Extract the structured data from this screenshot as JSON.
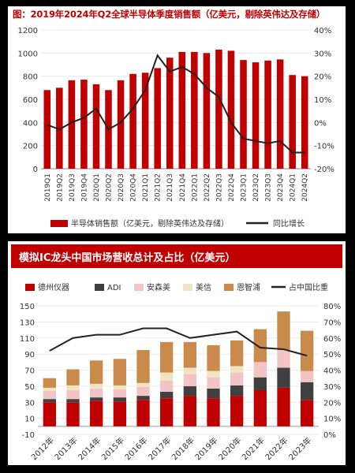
{
  "colors": {
    "bar_red": "#c00000",
    "line_black": "#222222",
    "adi": "#404040",
    "ams": "#f2c4c4",
    "maxim": "#f1e3c0",
    "onsemi": "#c98a4b"
  },
  "chart_data": [
    {
      "type": "bar",
      "title": "图：2019年2024年Q2全球半导体季度销售额（亿美元，剔除英伟达及存储）",
      "categories": [
        "2019Q1",
        "2019Q2",
        "2019Q3",
        "2019Q4",
        "2020Q1",
        "2020Q2",
        "2020Q3",
        "2020Q4",
        "2021Q1",
        "2021Q2",
        "2021Q3",
        "2021Q4",
        "2022Q1",
        "2022Q2",
        "2022Q3",
        "2022Q4",
        "2023Q1",
        "2023Q2",
        "2023Q3",
        "2023Q4",
        "2024Q1",
        "2024Q2"
      ],
      "series": [
        {
          "name": "半导体销售额（亿美元，剔除英伟达及存储）",
          "type": "bar",
          "axis": "left",
          "values": [
            680,
            700,
            765,
            770,
            730,
            680,
            765,
            820,
            830,
            870,
            960,
            1010,
            1010,
            1000,
            1030,
            1020,
            940,
            920,
            935,
            945,
            810,
            800
          ]
        },
        {
          "name": "同比增长",
          "type": "line",
          "axis": "right",
          "unit": "%",
          "values": [
            -1,
            -3,
            0,
            2,
            6,
            -3,
            0,
            6,
            14,
            29,
            22,
            24,
            21,
            15,
            11,
            0,
            -7,
            -8,
            -9,
            -8,
            -13,
            -13
          ]
        }
      ],
      "yticks_left": [
        "0",
        "200",
        "400",
        "600",
        "800",
        "1000",
        "1200"
      ],
      "yticks_right": [
        "-20%",
        "-10%",
        "0%",
        "10%",
        "20%",
        "30%",
        "40%"
      ],
      "ylim_left": [
        0,
        1200
      ],
      "ylim_right": [
        -20,
        40
      ],
      "legend_position": "bottom"
    },
    {
      "type": "bar",
      "title": "模拟IC龙头中国市场营收总计及占比（亿美元）",
      "categories": [
        "2012年",
        "2013年",
        "2014年",
        "2015年",
        "2016年",
        "2017年",
        "2018年",
        "2019年",
        "2020年",
        "2021年",
        "2022年",
        "2023年"
      ],
      "series": [
        {
          "name": "德州仪器",
          "type": "stacked-bar",
          "axis": "left",
          "values": [
            30,
            30,
            32,
            31,
            33,
            35,
            38,
            35,
            38,
            45,
            48,
            33
          ]
        },
        {
          "name": "ADI",
          "type": "stacked-bar",
          "axis": "left",
          "values": [
            4,
            4,
            4,
            5,
            5,
            8,
            12,
            12,
            13,
            16,
            25,
            22
          ]
        },
        {
          "name": "安森美",
          "type": "stacked-bar",
          "axis": "left",
          "values": [
            10,
            11,
            11,
            10,
            11,
            14,
            15,
            14,
            16,
            19,
            22,
            14
          ]
        },
        {
          "name": "美信",
          "type": "stacked-bar",
          "axis": "left",
          "values": [
            4,
            6,
            6,
            5,
            5,
            10,
            8,
            8,
            8,
            0,
            0,
            0
          ]
        },
        {
          "name": "恩智浦",
          "type": "stacked-bar",
          "axis": "left",
          "values": [
            12,
            20,
            29,
            33,
            41,
            38,
            32,
            32,
            32,
            41,
            48,
            50
          ]
        },
        {
          "name": "占中国比重",
          "type": "line",
          "axis": "right",
          "unit": "%",
          "values": [
            52,
            60,
            62,
            62,
            66,
            66,
            60,
            62,
            64,
            54,
            53,
            49
          ]
        }
      ],
      "yticks_left": [
        "-10",
        "10",
        "30",
        "50",
        "70",
        "90",
        "110",
        "130",
        "150"
      ],
      "yticks_right": [
        "0%",
        "10%",
        "20%",
        "30%",
        "40%",
        "50%",
        "60%",
        "70%",
        "80%"
      ],
      "ylim_left": [
        -10,
        150
      ],
      "ylim_right": [
        0,
        80
      ],
      "legend_position": "top"
    }
  ]
}
